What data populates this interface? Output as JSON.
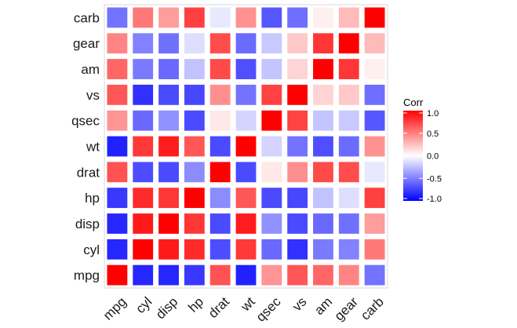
{
  "chart_data": {
    "type": "heatmap",
    "variables": [
      "mpg",
      "cyl",
      "disp",
      "hp",
      "drat",
      "wt",
      "qsec",
      "vs",
      "am",
      "gear",
      "carb"
    ],
    "matrix": [
      [
        1.0,
        -0.85,
        -0.85,
        -0.78,
        0.68,
        -0.87,
        0.42,
        0.66,
        0.6,
        0.48,
        -0.55
      ],
      [
        -0.85,
        1.0,
        0.9,
        0.83,
        -0.7,
        0.78,
        -0.59,
        -0.81,
        -0.52,
        -0.49,
        0.53
      ],
      [
        -0.85,
        0.9,
        1.0,
        0.79,
        -0.71,
        0.89,
        -0.43,
        -0.71,
        -0.59,
        -0.56,
        0.39
      ],
      [
        -0.78,
        0.83,
        0.79,
        1.0,
        -0.45,
        0.66,
        -0.71,
        -0.72,
        -0.24,
        -0.13,
        0.75
      ],
      [
        0.68,
        -0.7,
        -0.71,
        -0.45,
        1.0,
        -0.71,
        0.09,
        0.44,
        0.71,
        0.7,
        -0.09
      ],
      [
        -0.87,
        0.78,
        0.89,
        0.66,
        -0.71,
        1.0,
        -0.17,
        -0.55,
        -0.69,
        -0.58,
        0.43
      ],
      [
        0.42,
        -0.59,
        -0.43,
        -0.71,
        0.09,
        -0.17,
        1.0,
        0.74,
        -0.23,
        -0.21,
        -0.66
      ],
      [
        0.66,
        -0.81,
        -0.71,
        -0.72,
        0.44,
        -0.55,
        0.74,
        1.0,
        0.17,
        0.21,
        -0.57
      ],
      [
        0.6,
        -0.52,
        -0.59,
        -0.24,
        0.71,
        -0.69,
        -0.23,
        0.17,
        1.0,
        0.79,
        0.06
      ],
      [
        0.48,
        -0.49,
        -0.56,
        -0.13,
        0.7,
        -0.58,
        -0.21,
        0.21,
        0.79,
        1.0,
        0.27
      ],
      [
        -0.55,
        0.53,
        0.39,
        0.75,
        -0.09,
        0.43,
        -0.66,
        -0.57,
        0.06,
        0.27,
        1.0
      ]
    ],
    "legend": {
      "title": "Corr",
      "range": [
        -1.0,
        1.0
      ],
      "ticks": [
        1.0,
        0.5,
        0.0,
        -0.5,
        -1.0
      ],
      "tick_labels": [
        "1.0",
        "0.5",
        "0.0",
        "-0.5",
        "-1.0"
      ],
      "colors": {
        "low": "#0000FF",
        "mid": "#FFFFFF",
        "high": "#FF0000"
      },
      "placement": "right"
    },
    "grid": false,
    "x_order": [
      "mpg",
      "cyl",
      "disp",
      "hp",
      "drat",
      "wt",
      "qsec",
      "vs",
      "am",
      "gear",
      "carb"
    ],
    "y_order_bottom_to_top": [
      "mpg",
      "cyl",
      "disp",
      "hp",
      "drat",
      "wt",
      "qsec",
      "vs",
      "am",
      "gear",
      "carb"
    ]
  }
}
